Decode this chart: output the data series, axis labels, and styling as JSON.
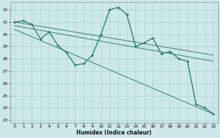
{
  "xlabel": "Humidex (Indice chaleur)",
  "bg_color": "#cde8eb",
  "grid_color": "#aad0d4",
  "line_color": "#2d7a6e",
  "xlim": [
    -0.5,
    23.5
  ],
  "ylim": [
    22.8,
    32.6
  ],
  "yticks": [
    23,
    24,
    25,
    26,
    27,
    28,
    29,
    30,
    31,
    32
  ],
  "xticks": [
    0,
    1,
    2,
    3,
    4,
    5,
    6,
    7,
    8,
    9,
    10,
    11,
    12,
    13,
    14,
    15,
    16,
    17,
    18,
    19,
    20,
    21,
    22,
    23
  ],
  "series": [
    {
      "x": [
        0,
        23
      ],
      "y": [
        31.0,
        28.3
      ],
      "style": "-",
      "lw": 0.7,
      "marker": false
    },
    {
      "x": [
        0,
        23
      ],
      "y": [
        30.7,
        27.8
      ],
      "style": "-",
      "lw": 0.7,
      "marker": false
    },
    {
      "x": [
        0,
        23
      ],
      "y": [
        30.4,
        23.5
      ],
      "style": "-",
      "lw": 0.7,
      "marker": false
    },
    {
      "x": [
        0,
        1,
        2,
        3,
        4,
        5,
        6,
        7,
        8,
        9,
        10,
        11,
        12,
        13,
        14,
        15,
        16,
        17,
        18,
        19,
        20,
        21,
        22,
        23
      ],
      "y": [
        31.0,
        31.1,
        30.8,
        29.6,
        30.2,
        29.1,
        28.5,
        27.5,
        27.6,
        28.3,
        30.0,
        32.0,
        32.2,
        31.6,
        29.0,
        29.3,
        29.7,
        28.4,
        28.6,
        28.0,
        27.8,
        24.3,
        24.0,
        23.5
      ],
      "style": "-",
      "lw": 1.0,
      "marker": true
    }
  ]
}
